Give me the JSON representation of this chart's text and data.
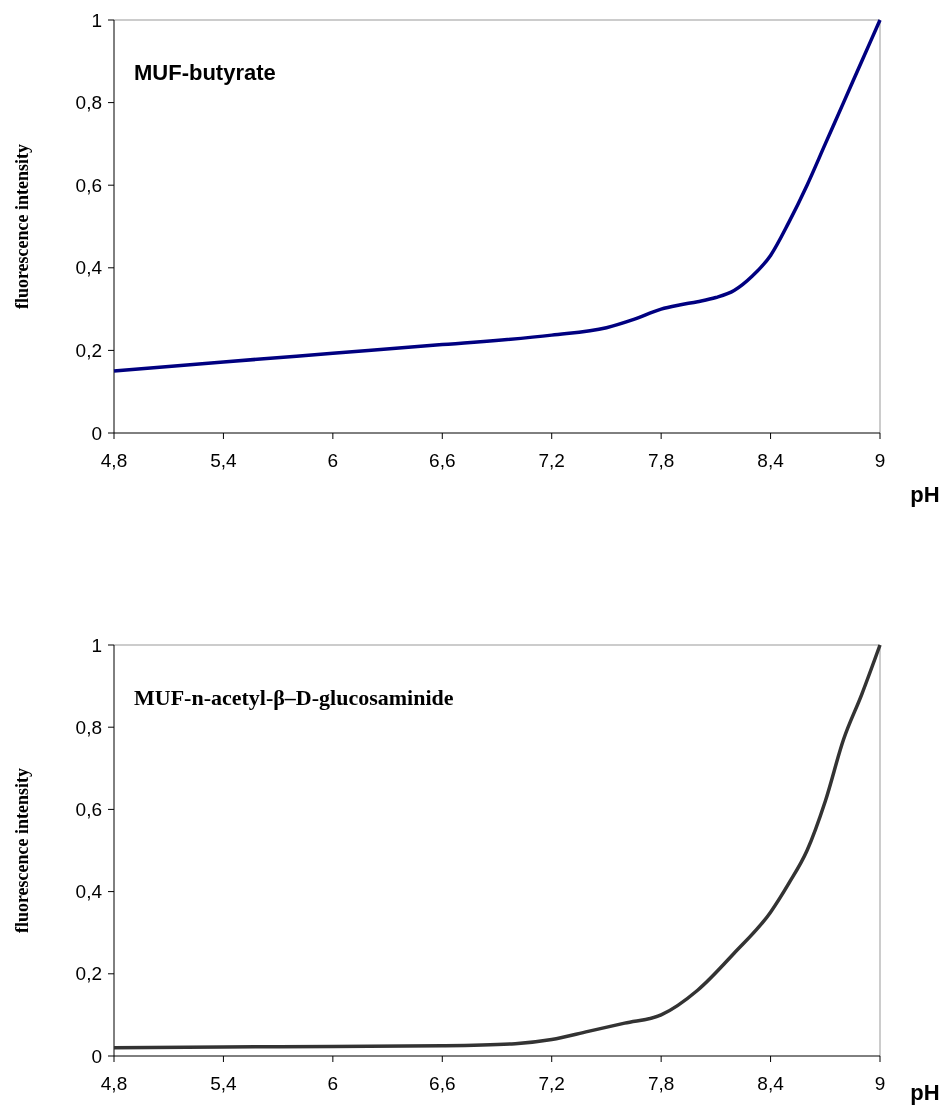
{
  "chart_data": [
    {
      "type": "line",
      "title": "MUF-butyrate",
      "xlabel": "pH",
      "ylabel": "fluorescence intensity",
      "xlim": [
        4.8,
        9
      ],
      "ylim": [
        0,
        1
      ],
      "xticks": [
        {
          "value": 4.8,
          "label": "4,8"
        },
        {
          "value": 5.4,
          "label": "5,4"
        },
        {
          "value": 6,
          "label": "6"
        },
        {
          "value": 6.6,
          "label": "6,6"
        },
        {
          "value": 7.2,
          "label": "7,2"
        },
        {
          "value": 7.8,
          "label": "7,8"
        },
        {
          "value": 8.4,
          "label": "8,4"
        },
        {
          "value": 9,
          "label": "9"
        }
      ],
      "yticks": [
        {
          "value": 0,
          "label": "0"
        },
        {
          "value": 0.2,
          "label": "0,2"
        },
        {
          "value": 0.4,
          "label": "0,4"
        },
        {
          "value": 0.6,
          "label": "0,6"
        },
        {
          "value": 0.8,
          "label": "0,8"
        },
        {
          "value": 1,
          "label": "1"
        }
      ],
      "series": [
        {
          "color": "#000080",
          "x": [
            4.8,
            5.4,
            6,
            6.6,
            7.2,
            7.5,
            7.65,
            7.8,
            7.9,
            8.0,
            8.1,
            8.2,
            8.3,
            8.4,
            8.5,
            8.6,
            8.7,
            8.8,
            8.9,
            9
          ],
          "values": [
            0.15,
            0.172,
            0.193,
            0.214,
            0.237,
            0.255,
            0.275,
            0.3,
            0.31,
            0.318,
            0.328,
            0.345,
            0.38,
            0.43,
            0.51,
            0.6,
            0.7,
            0.8,
            0.9,
            1.0
          ]
        }
      ]
    },
    {
      "type": "line",
      "title": "MUF-n-acetyl-β–D-glucosaminide",
      "xlabel": "pH",
      "ylabel": "fluorescence intensity",
      "xlim": [
        4.8,
        9
      ],
      "ylim": [
        0,
        1
      ],
      "xticks": [
        {
          "value": 4.8,
          "label": "4,8"
        },
        {
          "value": 5.4,
          "label": "5,4"
        },
        {
          "value": 6,
          "label": "6"
        },
        {
          "value": 6.6,
          "label": "6,6"
        },
        {
          "value": 7.2,
          "label": "7,2"
        },
        {
          "value": 7.8,
          "label": "7,8"
        },
        {
          "value": 8.4,
          "label": "8,4"
        },
        {
          "value": 9,
          "label": "9"
        }
      ],
      "yticks": [
        {
          "value": 0,
          "label": "0"
        },
        {
          "value": 0.2,
          "label": "0,2"
        },
        {
          "value": 0.4,
          "label": "0,4"
        },
        {
          "value": 0.6,
          "label": "0,6"
        },
        {
          "value": 0.8,
          "label": "0,8"
        },
        {
          "value": 1,
          "label": "1"
        }
      ],
      "series": [
        {
          "color": "#333333",
          "x": [
            4.8,
            5.4,
            6,
            6.6,
            7.0,
            7.2,
            7.4,
            7.6,
            7.8,
            8.0,
            8.2,
            8.4,
            8.5,
            8.6,
            8.7,
            8.8,
            8.9,
            9
          ],
          "values": [
            0.02,
            0.022,
            0.023,
            0.025,
            0.03,
            0.04,
            0.06,
            0.08,
            0.1,
            0.16,
            0.25,
            0.35,
            0.42,
            0.5,
            0.62,
            0.77,
            0.88,
            1.0
          ]
        }
      ]
    }
  ]
}
